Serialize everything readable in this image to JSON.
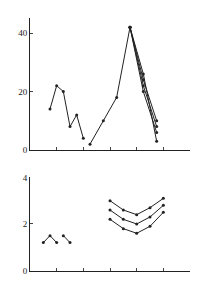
{
  "chart_data": [
    {
      "type": "line",
      "marker": "circle",
      "color": "#222222",
      "grid": false,
      "tick_labels": "y",
      "xlim": [
        0,
        12
      ],
      "xticks": [
        2,
        4,
        6,
        8,
        10
      ],
      "ylim": [
        0,
        45
      ],
      "yticks": [
        0,
        20,
        40
      ],
      "series": [
        {
          "x": [
            1.5,
            2,
            2.5,
            3,
            3.5,
            4
          ],
          "values": [
            14,
            22,
            20,
            8,
            12,
            4
          ]
        },
        {
          "x": [
            4.5,
            5.5,
            6.5,
            7.5,
            8.5,
            9.5
          ],
          "values": [
            2,
            10,
            18,
            42,
            26,
            3
          ]
        },
        {
          "x": [
            7.5,
            8.5,
            9.5
          ],
          "values": [
            42,
            24,
            10
          ]
        },
        {
          "x": [
            7.5,
            8.5,
            9.5
          ],
          "values": [
            42,
            22,
            8
          ]
        },
        {
          "x": [
            7.5,
            8.5,
            9.5
          ],
          "values": [
            42,
            20,
            6
          ]
        }
      ]
    },
    {
      "type": "line",
      "marker": "circle",
      "color": "#222222",
      "grid": false,
      "tick_labels": "y",
      "xlim": [
        0,
        12
      ],
      "xticks": [
        2,
        4,
        6,
        8,
        10
      ],
      "ylim": [
        0,
        4
      ],
      "yticks": [
        0,
        2,
        4
      ],
      "series": [
        {
          "x": [
            1,
            1.5,
            2
          ],
          "values": [
            1.2,
            1.5,
            1.2
          ]
        },
        {
          "x": [
            2.5,
            3
          ],
          "values": [
            1.5,
            1.2
          ]
        },
        {
          "x": [
            6,
            7,
            8,
            9,
            10
          ],
          "values": [
            2.2,
            1.8,
            1.6,
            1.9,
            2.5
          ]
        },
        {
          "x": [
            6,
            7,
            8,
            9,
            10
          ],
          "values": [
            2.6,
            2.2,
            2.0,
            2.3,
            2.8
          ]
        },
        {
          "x": [
            6,
            7,
            8,
            9,
            10
          ],
          "values": [
            3.0,
            2.6,
            2.4,
            2.7,
            3.1
          ]
        }
      ]
    }
  ]
}
